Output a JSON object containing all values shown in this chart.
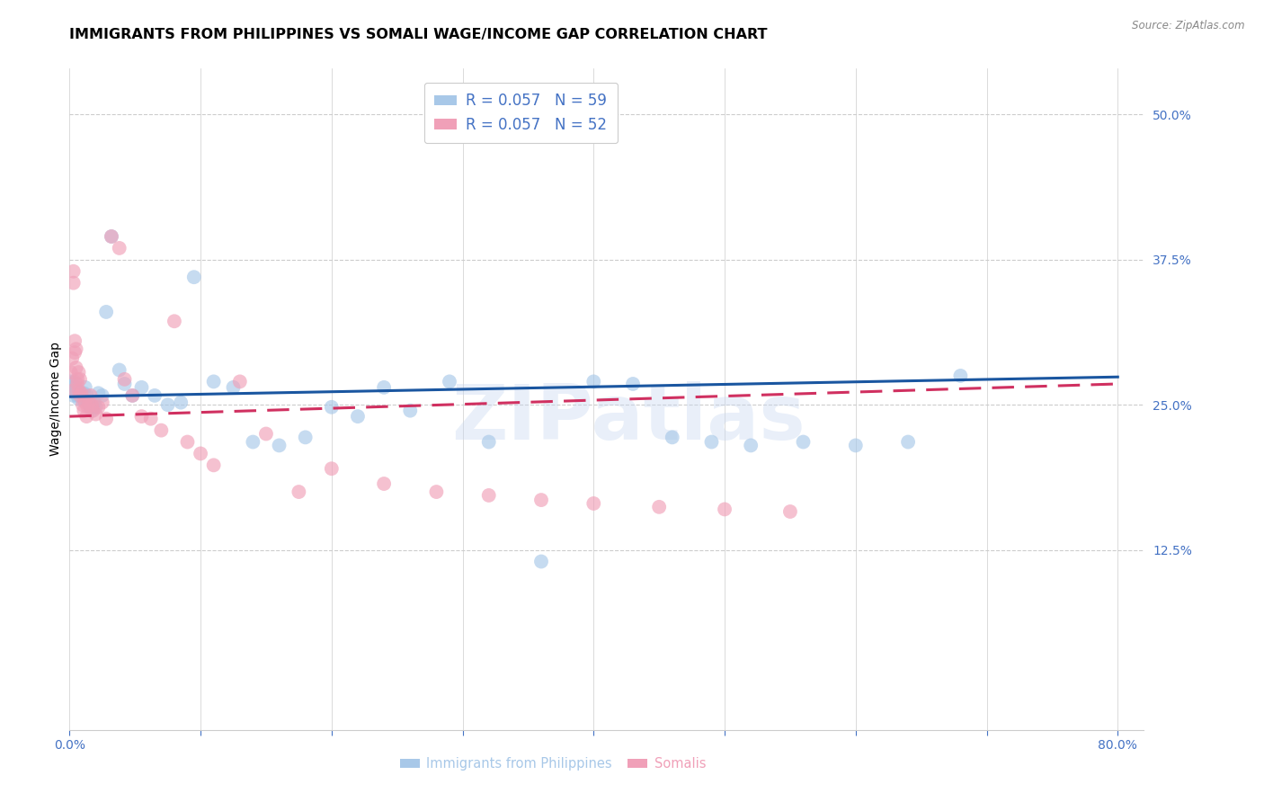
{
  "title": "IMMIGRANTS FROM PHILIPPINES VS SOMALI WAGE/INCOME GAP CORRELATION CHART",
  "source": "Source: ZipAtlas.com",
  "ylabel": "Wage/Income Gap",
  "xlim": [
    0.0,
    0.82
  ],
  "ylim": [
    -0.03,
    0.54
  ],
  "xticks": [
    0.0,
    0.1,
    0.2,
    0.3,
    0.4,
    0.5,
    0.6,
    0.7,
    0.8
  ],
  "yticks": [
    0.0,
    0.125,
    0.25,
    0.375,
    0.5
  ],
  "ytick_labels": [
    "",
    "12.5%",
    "25.0%",
    "37.5%",
    "50.0%"
  ],
  "watermark": "ZIPatlas",
  "legend_line1": "R = 0.057   N = 59",
  "legend_line2": "R = 0.057   N = 52",
  "philippines_color": "#a8c8e8",
  "somali_color": "#f0a0b8",
  "philippines_line_color": "#1a56a0",
  "somali_line_color": "#d03060",
  "tick_color": "#4472c4",
  "background_color": "#ffffff",
  "grid_color": "#cccccc",
  "title_fontsize": 11.5,
  "axis_label_fontsize": 10,
  "tick_fontsize": 10,
  "marker_size": 130,
  "marker_alpha": 0.65,
  "line_width": 2.2,
  "philippines_x": [
    0.001,
    0.002,
    0.002,
    0.003,
    0.003,
    0.004,
    0.004,
    0.005,
    0.005,
    0.006,
    0.006,
    0.007,
    0.008,
    0.009,
    0.01,
    0.011,
    0.012,
    0.013,
    0.014,
    0.015,
    0.016,
    0.017,
    0.018,
    0.019,
    0.02,
    0.022,
    0.025,
    0.028,
    0.032,
    0.038,
    0.042,
    0.048,
    0.055,
    0.065,
    0.075,
    0.085,
    0.095,
    0.11,
    0.125,
    0.14,
    0.16,
    0.18,
    0.2,
    0.22,
    0.24,
    0.26,
    0.29,
    0.32,
    0.36,
    0.4,
    0.43,
    0.46,
    0.49,
    0.52,
    0.56,
    0.6,
    0.64,
    0.68,
    0.36
  ],
  "philippines_y": [
    0.27,
    0.268,
    0.265,
    0.262,
    0.258,
    0.27,
    0.265,
    0.265,
    0.26,
    0.262,
    0.258,
    0.255,
    0.258,
    0.26,
    0.255,
    0.26,
    0.265,
    0.258,
    0.252,
    0.25,
    0.248,
    0.245,
    0.248,
    0.252,
    0.248,
    0.26,
    0.258,
    0.33,
    0.395,
    0.28,
    0.268,
    0.258,
    0.265,
    0.258,
    0.25,
    0.252,
    0.36,
    0.27,
    0.265,
    0.218,
    0.215,
    0.222,
    0.248,
    0.24,
    0.265,
    0.245,
    0.27,
    0.218,
    0.115,
    0.27,
    0.268,
    0.222,
    0.218,
    0.215,
    0.218,
    0.215,
    0.218,
    0.275,
    0.49
  ],
  "somali_x": [
    0.001,
    0.002,
    0.002,
    0.003,
    0.003,
    0.004,
    0.004,
    0.005,
    0.005,
    0.006,
    0.006,
    0.007,
    0.007,
    0.008,
    0.008,
    0.009,
    0.01,
    0.011,
    0.012,
    0.013,
    0.014,
    0.015,
    0.016,
    0.017,
    0.018,
    0.02,
    0.022,
    0.025,
    0.028,
    0.032,
    0.038,
    0.042,
    0.048,
    0.055,
    0.062,
    0.07,
    0.08,
    0.09,
    0.1,
    0.11,
    0.13,
    0.15,
    0.175,
    0.2,
    0.24,
    0.28,
    0.32,
    0.36,
    0.4,
    0.45,
    0.5,
    0.55
  ],
  "somali_y": [
    0.278,
    0.29,
    0.262,
    0.365,
    0.355,
    0.295,
    0.305,
    0.282,
    0.298,
    0.272,
    0.268,
    0.278,
    0.262,
    0.272,
    0.258,
    0.26,
    0.25,
    0.245,
    0.252,
    0.24,
    0.248,
    0.252,
    0.258,
    0.25,
    0.245,
    0.242,
    0.248,
    0.252,
    0.238,
    0.395,
    0.385,
    0.272,
    0.258,
    0.24,
    0.238,
    0.228,
    0.322,
    0.218,
    0.208,
    0.198,
    0.27,
    0.225,
    0.175,
    0.195,
    0.182,
    0.175,
    0.172,
    0.168,
    0.165,
    0.162,
    0.16,
    0.158
  ]
}
